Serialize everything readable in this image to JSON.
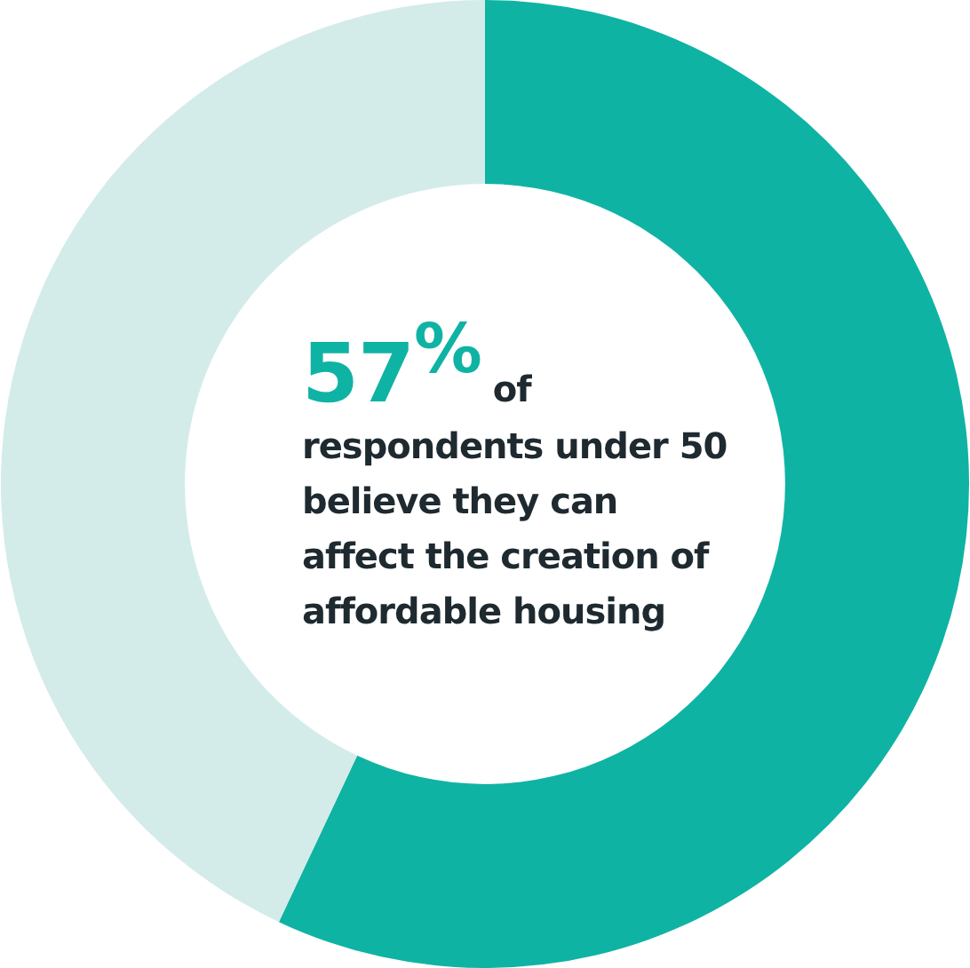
{
  "chart_data": {
    "type": "donut",
    "categories": [
      null,
      null
    ],
    "values": [
      57,
      43
    ],
    "colors": [
      "#0fb3a3",
      "#d3ece9"
    ],
    "annotations": [
      "57$^{%}$ of respondents under 50 believe they can affect the creation of affordable housing"
    ]
  }
}
